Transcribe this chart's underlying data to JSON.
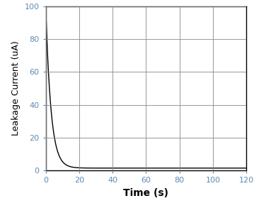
{
  "title": "",
  "xlabel": "Time (s)",
  "ylabel": "Leakage Current (uA)",
  "xlim": [
    0,
    120
  ],
  "ylim": [
    0,
    100
  ],
  "xticks": [
    0,
    20,
    40,
    60,
    80,
    100,
    120
  ],
  "yticks": [
    0,
    20,
    40,
    60,
    80,
    100
  ],
  "curve_color": "#000000",
  "curve_linewidth": 1.0,
  "grid_color": "#888888",
  "grid_linewidth": 0.6,
  "background_color": "#ffffff",
  "initial_value": 100,
  "decay_constant": 0.32,
  "asymptote": 1.5,
  "xlabel_fontsize": 10,
  "ylabel_fontsize": 9,
  "tick_fontsize": 8,
  "tick_color": "#5b8ab5",
  "xlabel_fontweight": "bold",
  "ylabel_fontweight": "normal",
  "spine_linewidth": 1.0
}
